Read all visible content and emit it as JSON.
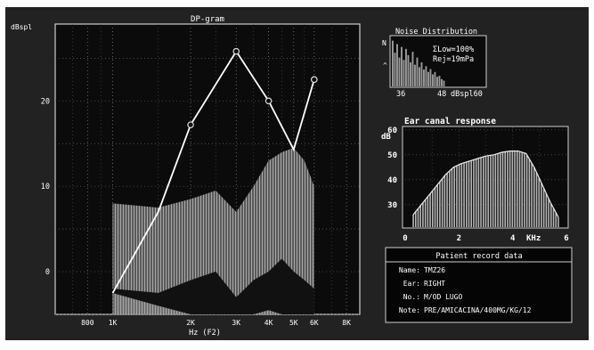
{
  "dp_gram": {
    "title": "DP-gram",
    "y_unit": "dBspl",
    "y_ticks": [
      {
        "value": 20,
        "label": "20"
      },
      {
        "value": 10,
        "label": "10"
      },
      {
        "value": 0,
        "label": "0"
      }
    ],
    "x_ticks": [
      {
        "hz": 800,
        "label": "800"
      },
      {
        "hz": 1000,
        "label": "1K"
      },
      {
        "hz": 2000,
        "label": "2K"
      },
      {
        "hz": 3000,
        "label": "3K"
      },
      {
        "hz": 4000,
        "label": "4K"
      },
      {
        "hz": 5000,
        "label": "5K"
      },
      {
        "hz": 6000,
        "label": "6K"
      },
      {
        "hz": 8000,
        "label": "8K"
      }
    ],
    "x_label": "Hz (F2)",
    "xlim_hz": [
      600,
      9000
    ],
    "ylim_dbspl": [
      -5,
      29
    ],
    "series": [
      {
        "hz": [
          1000,
          1500,
          2000,
          3000,
          4000,
          5000,
          6000
        ],
        "dbspl": [
          -2.5,
          7,
          17.2,
          25.8,
          20,
          14.3,
          22.5
        ],
        "color": "#ffffff"
      }
    ],
    "markers_at_hz": [
      2000,
      3000,
      4000,
      6000
    ],
    "noise_floor_upper": {
      "hz": [
        1000,
        1500,
        2000,
        2500,
        3000,
        3500,
        4000,
        4500,
        5000,
        5500,
        6000
      ],
      "dbspl": [
        8,
        7.5,
        8.5,
        9.5,
        7,
        10,
        13,
        14,
        14.5,
        13,
        10
      ]
    },
    "noise_floor_middle": {
      "hz": [
        1000,
        1500,
        2000,
        2500,
        3000,
        3500,
        4000,
        4500,
        5000,
        5500,
        6000
      ],
      "dbspl": [
        -2,
        -2.5,
        -1,
        0,
        -3,
        -1,
        0,
        1.5,
        0,
        -1,
        -2
      ]
    },
    "noise_floor_lower": {
      "hz": [
        1000,
        1500,
        2000,
        2500,
        3000,
        3500,
        4000,
        4500,
        5000,
        5500,
        6000
      ],
      "dbspl": [
        -2.5,
        -4,
        -5,
        -5,
        -5,
        -5,
        -4.5,
        -5,
        -5,
        -5,
        -5
      ]
    }
  },
  "noise_distribution": {
    "title": "Noise Distribution",
    "y_label_n": "N",
    "y_label_caret": "^",
    "stat_low": "ΣLow=100%",
    "stat_rej": "Rej=19mPa",
    "x_tick_36": "36",
    "x_tick_48": "48",
    "x_unit": "dBspl60",
    "histogram_heights": [
      0.95,
      0.7,
      0.88,
      0.6,
      0.82,
      0.55,
      0.78,
      0.65,
      0.5,
      0.72,
      0.45,
      0.6,
      0.4,
      0.5,
      0.35,
      0.42,
      0.3,
      0.36,
      0.25,
      0.3,
      0.2,
      0.22,
      0.15,
      0.12
    ]
  },
  "ear_canal": {
    "title": "Ear canal response",
    "y_unit": "dB",
    "y_ticks": [
      {
        "value": 60,
        "label": "60"
      },
      {
        "value": 50,
        "label": "50"
      },
      {
        "value": 40,
        "label": "40"
      },
      {
        "value": 30,
        "label": "30"
      }
    ],
    "x_ticks": [
      {
        "khz": 0,
        "label": "0"
      },
      {
        "khz": 2,
        "label": "2"
      },
      {
        "khz": 4,
        "label": "4"
      },
      {
        "khz": 6,
        "label": "6"
      }
    ],
    "x_unit": "KHz",
    "xlim_khz": [
      0,
      6
    ],
    "ylim_db": [
      21,
      61
    ],
    "response": {
      "khz": [
        0.3,
        0.6,
        0.9,
        1.2,
        1.5,
        1.8,
        2.1,
        2.4,
        2.7,
        3.0,
        3.3,
        3.6,
        3.9,
        4.2,
        4.5,
        4.8,
        5.1,
        5.4,
        5.7
      ],
      "db": [
        26,
        30,
        34,
        38,
        42,
        45,
        46.5,
        47.5,
        48.5,
        49.5,
        50,
        51,
        51.5,
        51.5,
        50.5,
        45,
        38,
        31,
        25
      ]
    }
  },
  "patient_record": {
    "title": "Patient record data",
    "rows": [
      {
        "label": "Name:",
        "value": "TMZ26"
      },
      {
        "label": "Ear:",
        "value": "RIGHT"
      },
      {
        "label": "No.:",
        "value": "M/OD LUGO"
      },
      {
        "label": "Note:",
        "value": "PRE/AMICACINA/400MG/KG/12"
      }
    ]
  }
}
